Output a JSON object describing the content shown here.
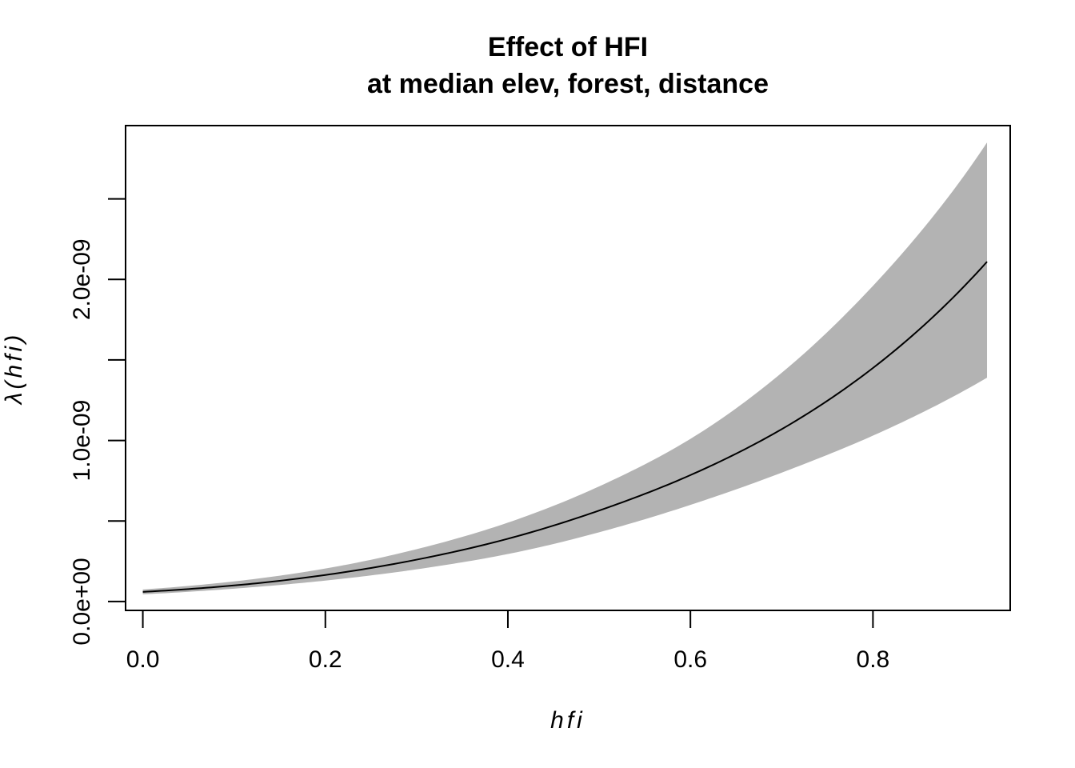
{
  "chart_data": {
    "type": "line",
    "title": "Effect of HFI",
    "subtitle": "at median elev, forest, distance",
    "xlabel": "hfi",
    "ylabel": "λ(hfi)",
    "xlim": [
      -0.0189,
      0.9504
    ],
    "ylim": [
      -5.5e-11,
      2.955e-09
    ],
    "x_ticks": [
      0,
      0.2,
      0.4,
      0.6,
      0.8
    ],
    "x_tick_labels": [
      "0.0",
      "0.2",
      "0.4",
      "0.6",
      "0.8"
    ],
    "y_ticks": [
      0,
      5e-10,
      1e-09,
      1.5e-09,
      2e-09,
      2.5e-09
    ],
    "y_tick_labels": [
      "0.0e+00",
      "",
      "1.0e-09",
      "",
      "2.0e-09",
      ""
    ],
    "grid": false,
    "legend": "none",
    "colors": {
      "line": "#000000",
      "band": "#b3b3b3",
      "axis": "#000000"
    },
    "series": [
      {
        "x": [
          0.0,
          0.1,
          0.2,
          0.3,
          0.4,
          0.5,
          0.6,
          0.7,
          0.8,
          0.925
        ],
        "values": [
          6e-11,
          1e-10,
          1.65e-10,
          2.6e-10,
          3.9e-10,
          5.65e-10,
          7.85e-10,
          1.07e-09,
          1.45e-09,
          2.11e-09
        ],
        "lower": [
          4.5e-11,
          8e-11,
          1.3e-10,
          2e-10,
          2.95e-10,
          4.3e-10,
          6e-10,
          8e-10,
          1.03e-09,
          1.39e-09
        ],
        "upper": [
          7.5e-11,
          1.25e-10,
          2.05e-10,
          3.25e-10,
          4.9e-10,
          7.15e-10,
          1.01e-09,
          1.42e-09,
          1.96e-09,
          2.85e-09
        ]
      }
    ]
  }
}
